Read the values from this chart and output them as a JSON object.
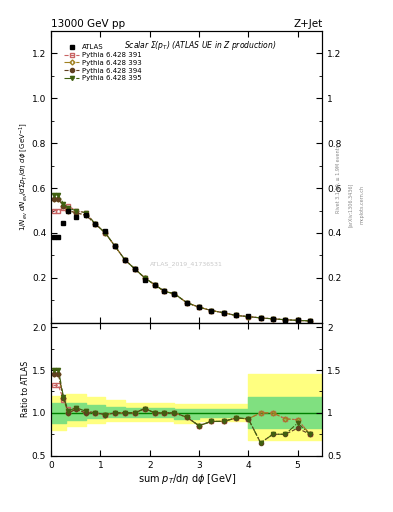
{
  "title_left": "13000 GeV pp",
  "title_right": "Z+Jet",
  "annotation_main": "Scalar Σ(p$_T$) (ATLAS UE in Z production)",
  "watermark": "ATLAS_2019_41736531",
  "rivet_text": "Rivet 3.1.10, ≥ 1.9M events",
  "arxiv_text": "[arXiv:1306.3436]",
  "mcp_text": "mcplots.cern.ch",
  "ylabel_main": "1/N$_{ev}$ dN$_{ev}$/dsum p$_T$/dη dφ  [GeV$^{-1}$]",
  "ylabel_ratio": "Ratio to ATLAS",
  "xlabel": "sum p$_T$/dη dφ [GeV]",
  "ylim_main": [
    0.0,
    1.3
  ],
  "ylim_ratio": [
    0.5,
    2.05
  ],
  "xlim": [
    0.0,
    5.5
  ],
  "yticks_main": [
    0.2,
    0.4,
    0.6,
    0.8,
    1.0,
    1.2
  ],
  "yticks_ratio": [
    0.5,
    1.0,
    1.5,
    2.0
  ],
  "xticks": [
    0,
    1,
    2,
    3,
    4,
    5
  ],
  "atlas_x": [
    0.05,
    0.15,
    0.25,
    0.35,
    0.5,
    0.7,
    0.9,
    1.1,
    1.3,
    1.5,
    1.7,
    1.9,
    2.1,
    2.3,
    2.5,
    2.75,
    3.0,
    3.25,
    3.5,
    3.75,
    4.0,
    4.25,
    4.5,
    4.75,
    5.0,
    5.25
  ],
  "atlas_y": [
    0.38,
    0.38,
    0.445,
    0.5,
    0.47,
    0.48,
    0.44,
    0.41,
    0.34,
    0.28,
    0.24,
    0.19,
    0.17,
    0.14,
    0.13,
    0.09,
    0.07,
    0.055,
    0.045,
    0.035,
    0.03,
    0.022,
    0.018,
    0.015,
    0.012,
    0.009
  ],
  "py391_x": [
    0.05,
    0.15,
    0.25,
    0.35,
    0.5,
    0.7,
    0.9,
    1.1,
    1.3,
    1.5,
    1.7,
    1.9,
    2.1,
    2.3,
    2.5,
    2.75,
    3.0,
    3.25,
    3.5,
    3.75,
    4.0,
    4.25,
    4.5,
    4.75,
    5.0,
    5.25
  ],
  "py391_y": [
    0.5,
    0.5,
    0.51,
    0.52,
    0.5,
    0.49,
    0.44,
    0.4,
    0.34,
    0.28,
    0.24,
    0.2,
    0.17,
    0.14,
    0.13,
    0.09,
    0.07,
    0.055,
    0.045,
    0.033,
    0.028,
    0.022,
    0.018,
    0.014,
    0.011,
    0.009
  ],
  "py393_x": [
    0.05,
    0.15,
    0.25,
    0.35,
    0.5,
    0.7,
    0.9,
    1.1,
    1.3,
    1.5,
    1.7,
    1.9,
    2.1,
    2.3,
    2.5,
    2.75,
    3.0,
    3.25,
    3.5,
    3.75,
    4.0,
    4.25,
    4.5,
    4.75,
    5.0,
    5.25
  ],
  "py393_y": [
    0.55,
    0.55,
    0.52,
    0.5,
    0.49,
    0.48,
    0.44,
    0.4,
    0.34,
    0.28,
    0.24,
    0.2,
    0.17,
    0.14,
    0.13,
    0.09,
    0.07,
    0.055,
    0.045,
    0.033,
    0.028,
    0.022,
    0.018,
    0.014,
    0.011,
    0.009
  ],
  "py394_x": [
    0.05,
    0.15,
    0.25,
    0.35,
    0.5,
    0.7,
    0.9,
    1.1,
    1.3,
    1.5,
    1.7,
    1.9,
    2.1,
    2.3,
    2.5,
    2.75,
    3.0,
    3.25,
    3.5,
    3.75,
    4.0,
    4.25,
    4.5,
    4.75,
    5.0,
    5.25
  ],
  "py394_y": [
    0.55,
    0.55,
    0.52,
    0.5,
    0.49,
    0.48,
    0.44,
    0.4,
    0.34,
    0.28,
    0.24,
    0.2,
    0.17,
    0.14,
    0.13,
    0.09,
    0.07,
    0.055,
    0.045,
    0.033,
    0.028,
    0.022,
    0.018,
    0.014,
    0.011,
    0.009
  ],
  "py395_x": [
    0.05,
    0.15,
    0.25,
    0.35,
    0.5,
    0.7,
    0.9,
    1.1,
    1.3,
    1.5,
    1.7,
    1.9,
    2.1,
    2.3,
    2.5,
    2.75,
    3.0,
    3.25,
    3.5,
    3.75,
    4.0,
    4.25,
    4.5,
    4.75,
    5.0,
    5.25
  ],
  "py395_y": [
    0.57,
    0.57,
    0.53,
    0.51,
    0.5,
    0.49,
    0.44,
    0.4,
    0.34,
    0.28,
    0.24,
    0.2,
    0.17,
    0.14,
    0.13,
    0.09,
    0.07,
    0.055,
    0.045,
    0.033,
    0.028,
    0.022,
    0.018,
    0.014,
    0.011,
    0.009
  ],
  "ratio391_y": [
    1.32,
    1.32,
    1.15,
    1.04,
    1.06,
    1.02,
    1.0,
    0.98,
    1.0,
    1.0,
    1.0,
    1.05,
    1.0,
    1.0,
    1.0,
    0.95,
    0.85,
    0.9,
    0.9,
    0.94,
    0.93,
    1.0,
    1.0,
    0.93,
    0.92,
    0.75
  ],
  "ratio393_y": [
    1.45,
    1.45,
    1.17,
    1.0,
    1.04,
    1.0,
    1.0,
    0.98,
    1.0,
    1.0,
    1.0,
    1.05,
    1.0,
    1.0,
    1.0,
    0.95,
    0.85,
    0.9,
    0.9,
    0.94,
    0.93,
    1.0,
    1.0,
    0.93,
    0.92,
    0.75
  ],
  "ratio394_y": [
    1.45,
    1.45,
    1.17,
    1.0,
    1.04,
    1.0,
    1.0,
    0.98,
    1.0,
    1.0,
    1.0,
    1.05,
    1.0,
    1.0,
    1.0,
    0.95,
    0.85,
    0.9,
    0.9,
    0.94,
    0.93,
    0.65,
    0.75,
    0.75,
    0.82,
    0.75
  ],
  "ratio395_y": [
    1.5,
    1.5,
    1.19,
    1.02,
    1.06,
    1.02,
    1.0,
    0.98,
    1.0,
    1.0,
    1.0,
    1.05,
    1.0,
    1.0,
    1.0,
    0.95,
    0.85,
    0.9,
    0.9,
    0.94,
    0.93,
    0.65,
    0.75,
    0.75,
    0.88,
    0.75
  ],
  "band_yellow_x": [
    0.0,
    0.3,
    0.7,
    1.1,
    1.5,
    2.0,
    2.5,
    3.0,
    3.5,
    4.0,
    4.3,
    5.5
  ],
  "band_yellow_lo": [
    0.8,
    0.85,
    0.88,
    0.9,
    0.9,
    0.9,
    0.88,
    0.9,
    0.9,
    0.68,
    0.68,
    0.68
  ],
  "band_yellow_hi": [
    1.2,
    1.22,
    1.18,
    1.15,
    1.12,
    1.12,
    1.1,
    1.1,
    1.1,
    1.45,
    1.45,
    1.45
  ],
  "band_green_x": [
    0.0,
    0.3,
    0.7,
    1.1,
    1.5,
    2.0,
    2.5,
    3.0,
    3.5,
    4.0,
    4.3,
    5.5
  ],
  "band_green_lo": [
    0.88,
    0.92,
    0.94,
    0.95,
    0.95,
    0.95,
    0.93,
    0.95,
    0.95,
    0.82,
    0.82,
    0.82
  ],
  "band_green_hi": [
    1.12,
    1.12,
    1.09,
    1.07,
    1.06,
    1.06,
    1.05,
    1.05,
    1.05,
    1.18,
    1.18,
    1.18
  ],
  "color_391": "#c86464",
  "color_393": "#a08020",
  "color_394": "#604020",
  "color_395": "#406010",
  "color_atlas": "#000000",
  "color_band_yellow": "#ffff80",
  "color_band_green": "#80e080",
  "color_ratio_line": "#008000"
}
